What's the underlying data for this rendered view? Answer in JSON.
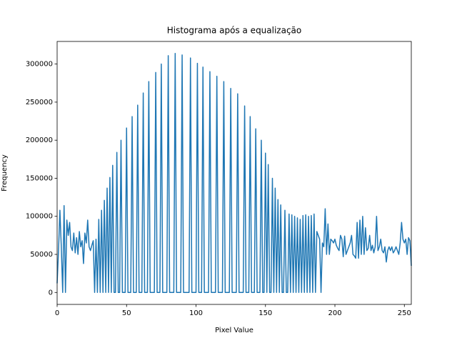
{
  "chart_data": {
    "type": "line",
    "title": "Histograma após a equalização",
    "x_label": "Pixel Value",
    "y_label": "Frequency",
    "color": "#1f77b4",
    "x": [
      0,
      1,
      2,
      3,
      4,
      5,
      6,
      7,
      8,
      9,
      10,
      11,
      12,
      13,
      14,
      15,
      16,
      17,
      18,
      19,
      20,
      21,
      22,
      23,
      24,
      25,
      26,
      27,
      28,
      29,
      30,
      31,
      32,
      33,
      34,
      35,
      36,
      37,
      38,
      39,
      40,
      41,
      42,
      43,
      44,
      45,
      46,
      47,
      48,
      49,
      50,
      51,
      52,
      53,
      54,
      55,
      56,
      57,
      58,
      59,
      60,
      61,
      62,
      63,
      64,
      65,
      66,
      67,
      68,
      69,
      70,
      71,
      72,
      73,
      74,
      75,
      76,
      77,
      78,
      79,
      80,
      81,
      82,
      83,
      84,
      85,
      86,
      87,
      88,
      89,
      90,
      91,
      92,
      93,
      94,
      95,
      96,
      97,
      98,
      99,
      100,
      101,
      102,
      103,
      104,
      105,
      106,
      107,
      108,
      109,
      110,
      111,
      112,
      113,
      114,
      115,
      116,
      117,
      118,
      119,
      120,
      121,
      122,
      123,
      124,
      125,
      126,
      127,
      128,
      129,
      130,
      131,
      132,
      133,
      134,
      135,
      136,
      137,
      138,
      139,
      140,
      141,
      142,
      143,
      144,
      145,
      146,
      147,
      148,
      149,
      150,
      151,
      152,
      153,
      154,
      155,
      156,
      157,
      158,
      159,
      160,
      161,
      162,
      163,
      164,
      165,
      166,
      167,
      168,
      169,
      170,
      171,
      172,
      173,
      174,
      175,
      176,
      177,
      178,
      179,
      180,
      181,
      182,
      183,
      184,
      185,
      186,
      187,
      188,
      189,
      190,
      191,
      192,
      193,
      194,
      195,
      196,
      197,
      198,
      199,
      200,
      201,
      202,
      203,
      204,
      205,
      206,
      207,
      208,
      209,
      210,
      211,
      212,
      213,
      214,
      215,
      216,
      217,
      218,
      219,
      220,
      221,
      222,
      223,
      224,
      225,
      226,
      227,
      228,
      229,
      230,
      231,
      232,
      233,
      234,
      235,
      236,
      237,
      238,
      239,
      240,
      241,
      242,
      243,
      244,
      245,
      246,
      247,
      248,
      249,
      250,
      251,
      252,
      253,
      254,
      255
    ],
    "values": [
      12000,
      55000,
      108000,
      60000,
      0,
      114000,
      0,
      95000,
      75000,
      92000,
      60000,
      55000,
      78000,
      52000,
      72000,
      50000,
      80000,
      60000,
      68000,
      38000,
      78000,
      65000,
      95000,
      60000,
      55000,
      62000,
      68000,
      0,
      70000,
      0,
      96000,
      0,
      108000,
      0,
      121000,
      0,
      137000,
      0,
      151000,
      0,
      167000,
      0,
      0,
      184000,
      0,
      0,
      200000,
      0,
      0,
      0,
      216000,
      0,
      0,
      0,
      231000,
      0,
      0,
      0,
      246000,
      0,
      0,
      0,
      262000,
      0,
      0,
      0,
      277000,
      0,
      0,
      0,
      0,
      289000,
      0,
      0,
      0,
      300000,
      0,
      0,
      0,
      0,
      311000,
      0,
      0,
      0,
      0,
      314000,
      0,
      0,
      0,
      0,
      312000,
      0,
      0,
      0,
      0,
      0,
      308000,
      0,
      0,
      0,
      0,
      301000,
      0,
      0,
      0,
      296000,
      0,
      0,
      0,
      0,
      290000,
      0,
      0,
      0,
      0,
      284000,
      0,
      0,
      0,
      0,
      277000,
      0,
      0,
      0,
      0,
      268000,
      0,
      0,
      0,
      0,
      261000,
      0,
      0,
      0,
      0,
      245000,
      0,
      0,
      0,
      231000,
      0,
      0,
      0,
      215000,
      0,
      0,
      0,
      200000,
      0,
      0,
      183000,
      0,
      168000,
      0,
      0,
      150000,
      0,
      137000,
      0,
      122000,
      0,
      115000,
      0,
      0,
      108000,
      0,
      0,
      103000,
      0,
      102000,
      0,
      100000,
      0,
      98000,
      0,
      96000,
      0,
      101000,
      0,
      102000,
      0,
      100000,
      0,
      101000,
      0,
      103000,
      0,
      80000,
      75000,
      70000,
      0,
      65000,
      60000,
      110000,
      50000,
      90000,
      50000,
      70000,
      68000,
      65000,
      70000,
      62000,
      58000,
      55000,
      75000,
      70000,
      47000,
      74000,
      50000,
      55000,
      60000,
      65000,
      75000,
      50000,
      48000,
      45000,
      92000,
      45000,
      95000,
      50000,
      100000,
      50000,
      85000,
      55000,
      58000,
      75000,
      55000,
      62000,
      52000,
      60000,
      100000,
      55000,
      60000,
      70000,
      55000,
      52000,
      60000,
      40000,
      55000,
      60000,
      55000,
      60000,
      52000,
      55000,
      60000,
      55000,
      50000,
      65000,
      92000,
      70000,
      65000,
      70000,
      50000,
      72000,
      68000,
      35000
    ],
    "xlim": [
      0,
      255
    ],
    "ylim": [
      -15700,
      329700
    ],
    "xticks": [
      0,
      50,
      100,
      150,
      200,
      250
    ],
    "yticks": [
      0,
      50000,
      100000,
      150000,
      200000,
      250000,
      300000
    ]
  }
}
